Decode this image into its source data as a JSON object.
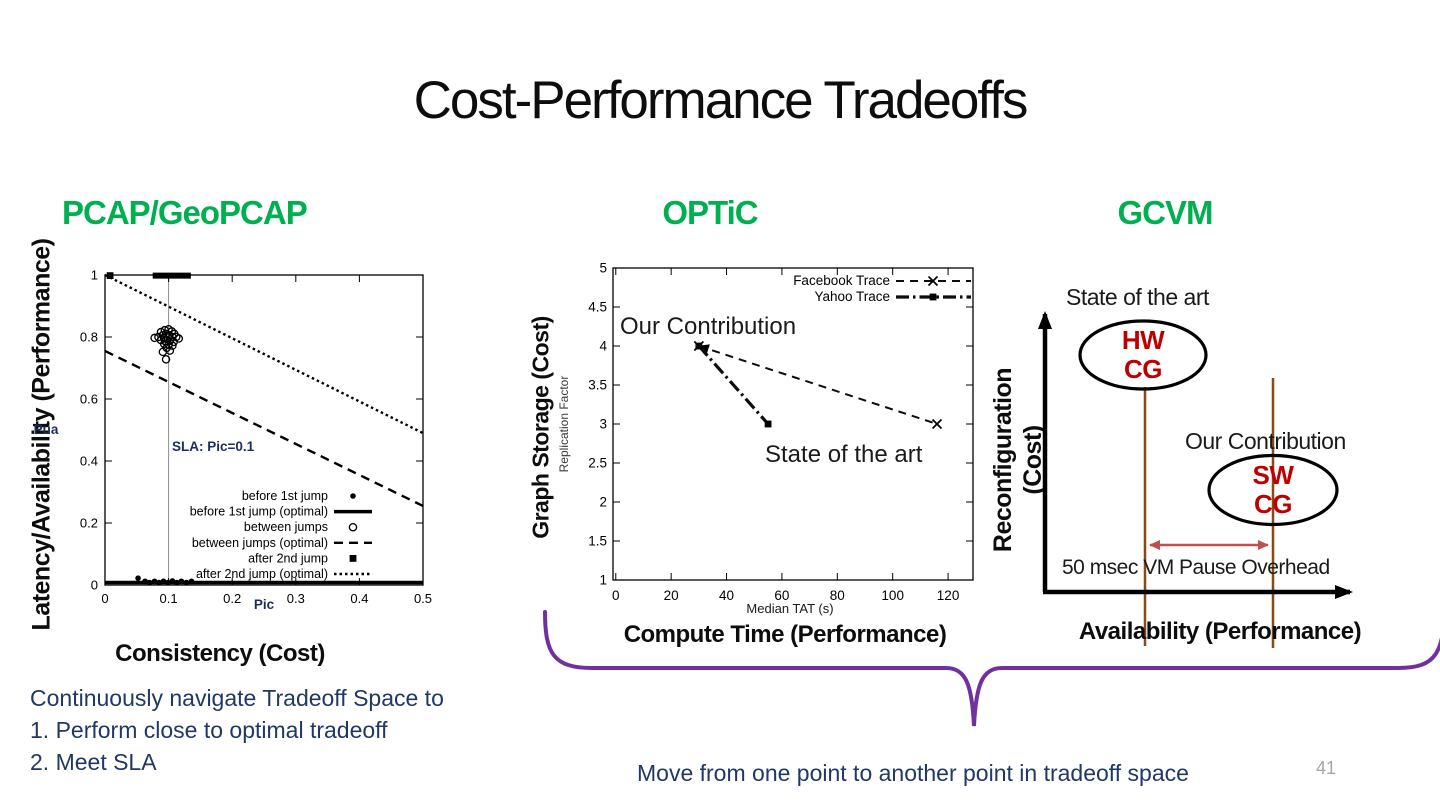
{
  "slide": {
    "title": "Cost-Performance Tradeoffs",
    "page_number": "41",
    "notes": {
      "line1": "Continuously navigate Tradeoff Space to",
      "line2": "1.  Perform close to optimal tradeoff",
      "line3": "2.  Meet SLA"
    },
    "brace_caption": "Move from one point to another point in tradeoff space"
  },
  "panels": {
    "pcap": {
      "heading": "PCAP/GeoPCAP",
      "y_axis_label": "Latency/Availability (Performance)",
      "x_axis_label": "Consistency (Cost)"
    },
    "optic": {
      "heading": "OPTiC",
      "y_axis_label": "Graph Storage (Cost)",
      "x_axis_label": "Compute Time (Performance)"
    },
    "gcvm": {
      "heading": "GCVM",
      "y_axis_label_line1": "Reconfiguration",
      "y_axis_label_line2": "(Cost)",
      "x_axis_label": "Availability (Performance)",
      "state_of_the_art": "State of the art",
      "our_contribution": "Our Contribution",
      "hw_ellipse_line1": "HW",
      "hw_ellipse_line2": "CG",
      "sw_ellipse_line1": "SW",
      "sw_ellipse_line2": "CG",
      "overhead_note": "50 msec VM Pause Overhead"
    }
  },
  "colors": {
    "heading_green": "#00b050",
    "note_navy": "#1f3864",
    "plot_annotation_navy": "#1b2d5e",
    "ellipse_text_red": "#c00000",
    "guide_brown": "#8a4a12",
    "overhead_arrow_salmon": "#c0504d",
    "brace_purple": "#7030a0",
    "page_number_gray": "#a6a6a6"
  },
  "chart_data": [
    {
      "type": "scatter",
      "panel": "PCAP/GeoPCAP",
      "xlabel": "Pic",
      "ylabel": "Pua",
      "sla_annotation": "SLA: Pic=0.1",
      "sla_vline_x": 0.1,
      "xlim": [
        0,
        0.5
      ],
      "ylim": [
        0,
        1
      ],
      "x_ticks": [
        "0",
        "0.1",
        "0.2",
        "0.3",
        "0.4",
        "0.5"
      ],
      "y_ticks": [
        "0",
        "0.2",
        "0.4",
        "0.6",
        "0.8",
        "1"
      ],
      "series": [
        {
          "name": "before 1st jump",
          "kind": "points",
          "marker": "dot",
          "points": [
            [
              0.052,
              0.022
            ],
            [
              0.063,
              0.012
            ],
            [
              0.07,
              0.008
            ],
            [
              0.078,
              0.012
            ],
            [
              0.085,
              0.008
            ],
            [
              0.092,
              0.012
            ],
            [
              0.099,
              0.008
            ],
            [
              0.106,
              0.013
            ],
            [
              0.113,
              0.008
            ],
            [
              0.12,
              0.012
            ],
            [
              0.128,
              0.008
            ],
            [
              0.136,
              0.012
            ]
          ]
        },
        {
          "name": "before 1st jump (optimal)",
          "kind": "line",
          "style": "solid",
          "points": [
            [
              0,
              0.008
            ],
            [
              0.5,
              0.008
            ]
          ]
        },
        {
          "name": "between jumps",
          "kind": "points",
          "marker": "circle",
          "points": [
            [
              0.088,
              0.816
            ],
            [
              0.094,
              0.822
            ],
            [
              0.1,
              0.825
            ],
            [
              0.105,
              0.818
            ],
            [
              0.091,
              0.806
            ],
            [
              0.096,
              0.81
            ],
            [
              0.101,
              0.806
            ],
            [
              0.109,
              0.81
            ],
            [
              0.084,
              0.8
            ],
            [
              0.106,
              0.8
            ],
            [
              0.078,
              0.797
            ],
            [
              0.093,
              0.796
            ],
            [
              0.099,
              0.798
            ],
            [
              0.112,
              0.8
            ],
            [
              0.116,
              0.795
            ],
            [
              0.088,
              0.79
            ],
            [
              0.095,
              0.786
            ],
            [
              0.102,
              0.788
            ],
            [
              0.108,
              0.784
            ],
            [
              0.093,
              0.778
            ],
            [
              0.1,
              0.775
            ],
            [
              0.106,
              0.772
            ],
            [
              0.097,
              0.765
            ],
            [
              0.102,
              0.756
            ],
            [
              0.091,
              0.752
            ],
            [
              0.096,
              0.728
            ]
          ]
        },
        {
          "name": "between jumps (optimal)",
          "kind": "line",
          "style": "dashed",
          "points": [
            [
              0,
              0.755
            ],
            [
              0.5,
              0.255
            ]
          ]
        },
        {
          "name": "after 2nd jump",
          "kind": "points",
          "marker": "square",
          "points": [
            [
              0.008,
              0.998
            ]
          ],
          "segment": [
            [
              0.075,
              0.998
            ],
            [
              0.135,
              0.998
            ]
          ]
        },
        {
          "name": "after 2nd jump (optimal)",
          "kind": "line",
          "style": "dotted",
          "points": [
            [
              0,
              1.0
            ],
            [
              0.5,
              0.49
            ]
          ]
        }
      ]
    },
    {
      "type": "line",
      "panel": "OPTiC",
      "xlabel": "Median TAT (s)",
      "ylabel": "Replication Factor",
      "xlim": [
        -1,
        129
      ],
      "ylim": [
        1,
        5
      ],
      "x_ticks": [
        "0",
        "20",
        "40",
        "60",
        "80",
        "100",
        "120"
      ],
      "y_ticks": [
        "1",
        "1.5",
        "2",
        "2.5",
        "3",
        "3.5",
        "4",
        "4.5",
        "5"
      ],
      "annotations": {
        "our_contribution": "Our Contribution",
        "state_of_the_art": "State of the art"
      },
      "series": [
        {
          "name": "Facebook Trace",
          "style": "dashed",
          "marker": "x",
          "arrow_to_first": true,
          "points": [
            [
              30,
              4
            ],
            [
              116,
              3
            ]
          ]
        },
        {
          "name": "Yahoo Trace",
          "style": "dashdot",
          "marker": "square",
          "arrow_to_first": false,
          "points": [
            [
              30,
              4
            ],
            [
              55,
              3
            ]
          ]
        }
      ]
    }
  ]
}
